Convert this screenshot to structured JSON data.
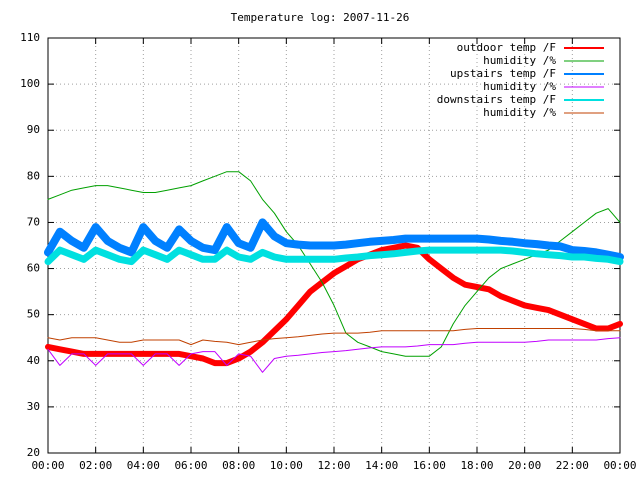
{
  "chart_data": {
    "type": "line",
    "title": "Temperature log: 2007-11-26",
    "x": [
      0,
      0.5,
      1,
      1.5,
      2,
      2.5,
      3,
      3.5,
      4,
      4.5,
      5,
      5.5,
      6,
      6.5,
      7,
      7.5,
      8,
      8.5,
      9,
      9.5,
      10,
      10.5,
      11,
      11.5,
      12,
      12.5,
      13,
      13.5,
      14,
      14.5,
      15,
      15.5,
      16,
      16.5,
      17,
      17.5,
      18,
      18.5,
      19,
      19.5,
      20,
      20.5,
      21,
      21.5,
      22,
      22.5,
      23,
      23.5,
      24
    ],
    "xlim": [
      0,
      24
    ],
    "xticks": [
      {
        "value": 0,
        "label": "00:00"
      },
      {
        "value": 2,
        "label": "02:00"
      },
      {
        "value": 4,
        "label": "04:00"
      },
      {
        "value": 6,
        "label": "06:00"
      },
      {
        "value": 8,
        "label": "08:00"
      },
      {
        "value": 10,
        "label": "10:00"
      },
      {
        "value": 12,
        "label": "12:00"
      },
      {
        "value": 14,
        "label": "14:00"
      },
      {
        "value": 16,
        "label": "16:00"
      },
      {
        "value": 18,
        "label": "18:00"
      },
      {
        "value": 20,
        "label": "20:00"
      },
      {
        "value": 22,
        "label": "22:00"
      },
      {
        "value": 24,
        "label": "00:00"
      }
    ],
    "ylim": [
      20,
      110
    ],
    "yticks": [
      20,
      30,
      40,
      50,
      60,
      70,
      80,
      90,
      100,
      110
    ],
    "grid": true,
    "legend": "top-right",
    "series": [
      {
        "name": "outdoor temp /F",
        "color": "#ff0000",
        "width": 6,
        "values": [
          43,
          42.5,
          42,
          41.5,
          41.5,
          41.5,
          41.5,
          41.5,
          41.5,
          41.5,
          41.5,
          41.5,
          41,
          40.5,
          39.5,
          39.5,
          40.5,
          42,
          44,
          46.5,
          49,
          52,
          55,
          57,
          59,
          60.5,
          62,
          63,
          64,
          64.5,
          65,
          64.5,
          62,
          60,
          58,
          56.5,
          56,
          55.5,
          54,
          53,
          52,
          51.5,
          51,
          50,
          49,
          48,
          47,
          47,
          48
        ]
      },
      {
        "name": "humidity /%",
        "color": "#00a000",
        "width": 1,
        "values": [
          75,
          76,
          77,
          77.5,
          78,
          78,
          77.5,
          77,
          76.5,
          76.5,
          77,
          77.5,
          78,
          79,
          80,
          81,
          81,
          79,
          75,
          72,
          68,
          65,
          61,
          57,
          52,
          46,
          44,
          43,
          42,
          41.5,
          41,
          41,
          41,
          43,
          48,
          52,
          55,
          58,
          60,
          61,
          62,
          63,
          64,
          66,
          68,
          70,
          72,
          73,
          70
        ]
      },
      {
        "name": "upstairs temp /F",
        "color": "#0080ff",
        "width": 8,
        "values": [
          63.5,
          68,
          66,
          64.5,
          69,
          66,
          64.5,
          63.5,
          69,
          66,
          64.5,
          68.5,
          66,
          64.5,
          64,
          69,
          65.5,
          64.5,
          70,
          67,
          65.5,
          65.2,
          65,
          65,
          65,
          65.2,
          65.5,
          65.8,
          66,
          66.2,
          66.5,
          66.5,
          66.5,
          66.5,
          66.5,
          66.5,
          66.5,
          66.3,
          66,
          65.8,
          65.5,
          65.3,
          65,
          64.8,
          64,
          63.8,
          63.5,
          63,
          62.5
        ]
      },
      {
        "name": "humidity /%",
        "color": "#c000ff",
        "width": 1,
        "values": [
          42.5,
          39,
          41.5,
          41.5,
          39,
          41.5,
          41.5,
          41.5,
          39,
          41.5,
          41.5,
          39,
          41.5,
          42,
          42,
          39,
          41.5,
          41,
          37.5,
          40.5,
          41,
          41.2,
          41.5,
          41.8,
          42,
          42.2,
          42.5,
          42.8,
          43,
          43,
          43,
          43.2,
          43.5,
          43.5,
          43.5,
          43.8,
          44,
          44,
          44,
          44,
          44,
          44.2,
          44.5,
          44.5,
          44.5,
          44.5,
          44.5,
          44.8,
          45
        ]
      },
      {
        "name": "downstairs temp /F",
        "color": "#00e0e0",
        "width": 7,
        "values": [
          61.5,
          64,
          63,
          62,
          64,
          63,
          62,
          61.5,
          64,
          63,
          62,
          64,
          63,
          62,
          62,
          64,
          62.5,
          62,
          63.5,
          62.5,
          62,
          62,
          62,
          62,
          62,
          62.3,
          62.5,
          62.8,
          63,
          63.2,
          63.5,
          63.8,
          64,
          64,
          64,
          64,
          64,
          64,
          64,
          63.8,
          63.5,
          63.2,
          63,
          62.8,
          62.5,
          62.5,
          62.2,
          62,
          61.5
        ]
      },
      {
        "name": "humidity /%",
        "color": "#c04000",
        "width": 1,
        "values": [
          45,
          44.5,
          45,
          45,
          45,
          44.5,
          44,
          44,
          44.5,
          44.5,
          44.5,
          44.5,
          43.5,
          44.5,
          44.2,
          44,
          43.5,
          44,
          44.5,
          44.8,
          45,
          45.2,
          45.5,
          45.8,
          46,
          46,
          46,
          46.2,
          46.5,
          46.5,
          46.5,
          46.5,
          46.5,
          46.5,
          46.5,
          46.8,
          47,
          47,
          47,
          47,
          47,
          47,
          47,
          47,
          47,
          46.8,
          46.5,
          46.5,
          46.5
        ]
      }
    ]
  }
}
